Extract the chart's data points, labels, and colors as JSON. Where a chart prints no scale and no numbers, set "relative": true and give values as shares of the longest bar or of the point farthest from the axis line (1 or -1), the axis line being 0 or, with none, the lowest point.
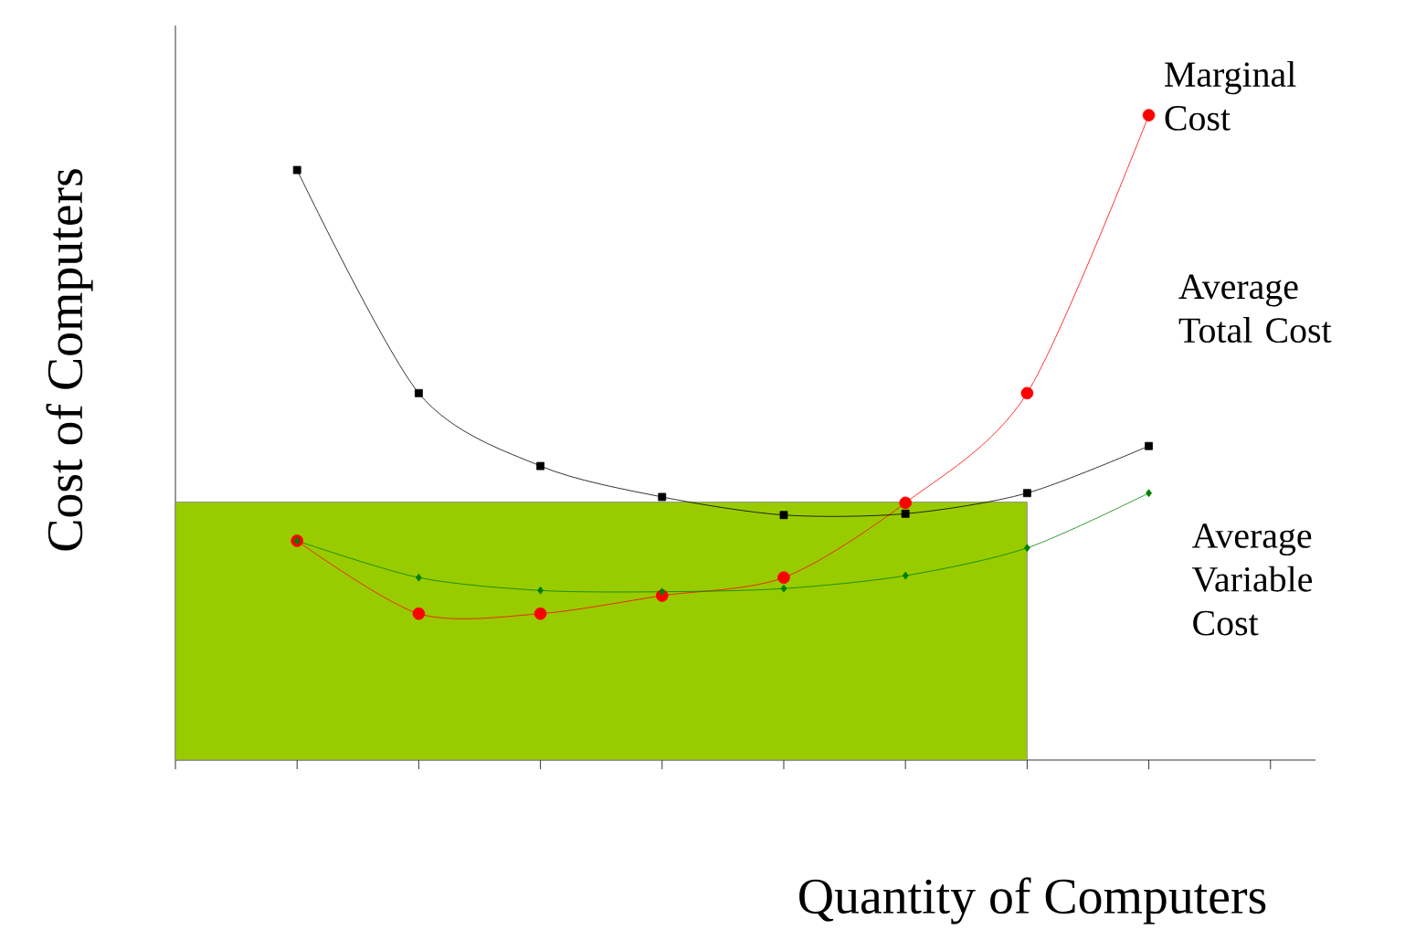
{
  "chart_data": {
    "type": "line",
    "relative": true,
    "xlabel": "Quantity of Computers",
    "ylabel": "Cost of Computers",
    "categories": [
      null,
      null,
      null,
      null,
      null,
      null,
      null,
      null,
      null,
      null
    ],
    "grid": false,
    "line_style": "solid",
    "series": [
      {
        "type": "area",
        "color": "#99cc00",
        "values": [
          0.4,
          0.4,
          0.4,
          0.4,
          0.4,
          0.4,
          0.4,
          0.4,
          null,
          null
        ]
      },
      {
        "name": "Marginal Cost",
        "color": "#ff0000",
        "marker": "circle",
        "values": [
          null,
          0.34,
          0.227,
          0.227,
          0.255,
          0.283,
          0.399,
          0.569,
          1,
          null
        ]
      },
      {
        "name": "Average Total Cost",
        "color": "#000000",
        "marker": "square",
        "values": [
          null,
          0.915,
          0.569,
          0.456,
          0.408,
          0.38,
          0.382,
          0.414,
          0.487,
          null
        ]
      },
      {
        "name": "Average Variable Cost",
        "color": "#008000",
        "marker": "diamond",
        "values": [
          null,
          0.34,
          0.283,
          0.263,
          0.261,
          0.266,
          0.286,
          0.329,
          0.414,
          null
        ]
      }
    ]
  }
}
